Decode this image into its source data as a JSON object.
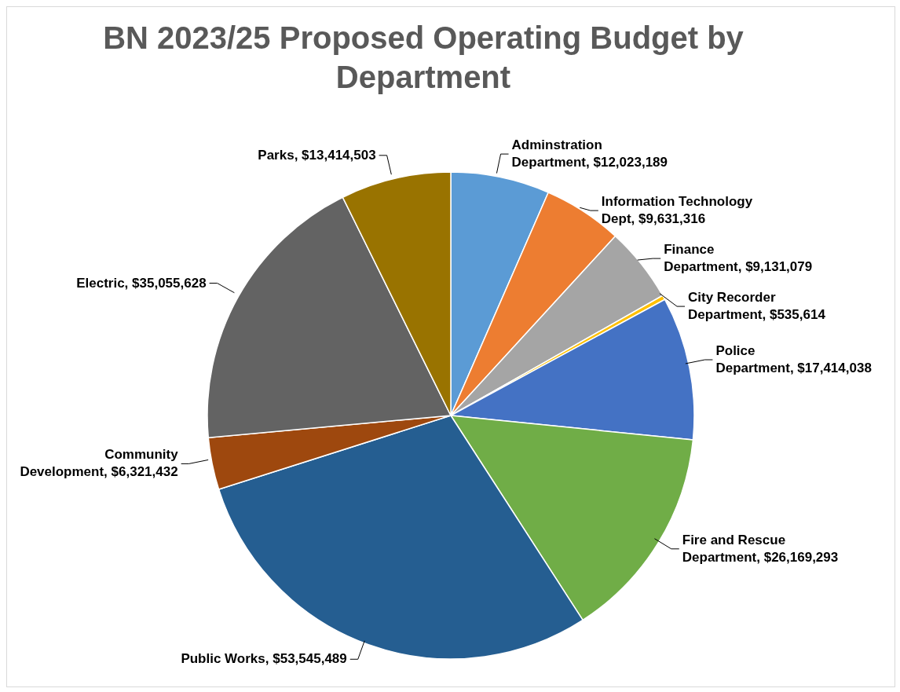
{
  "chart_data": {
    "type": "pie",
    "title": "BN 2023/25 Proposed Operating Budget by Department",
    "categories": [
      "Adminstration Department",
      "Information Technology Dept",
      "Finance Department",
      "City Recorder Department",
      "Police Department",
      "Fire and Rescue Department",
      "Public Works",
      "Community Development",
      "Electric",
      "Parks"
    ],
    "values": [
      12023189,
      9631316,
      9131079,
      535614,
      17414038,
      26169293,
      53545489,
      6321432,
      35055628,
      13414503
    ],
    "value_labels": [
      "$12,023,189",
      "$9,631,316",
      "$9,131,079",
      "$535,614",
      "$17,414,038",
      "$26,169,293",
      "$53,545,489",
      "$6,321,432",
      "$35,055,628",
      "$13,414,503"
    ],
    "colors": [
      "#5b9bd5",
      "#ed7d31",
      "#a5a5a5",
      "#ffc000",
      "#4472c4",
      "#70ad47",
      "#255e91",
      "#9e480e",
      "#636363",
      "#997300"
    ],
    "legend": false
  }
}
